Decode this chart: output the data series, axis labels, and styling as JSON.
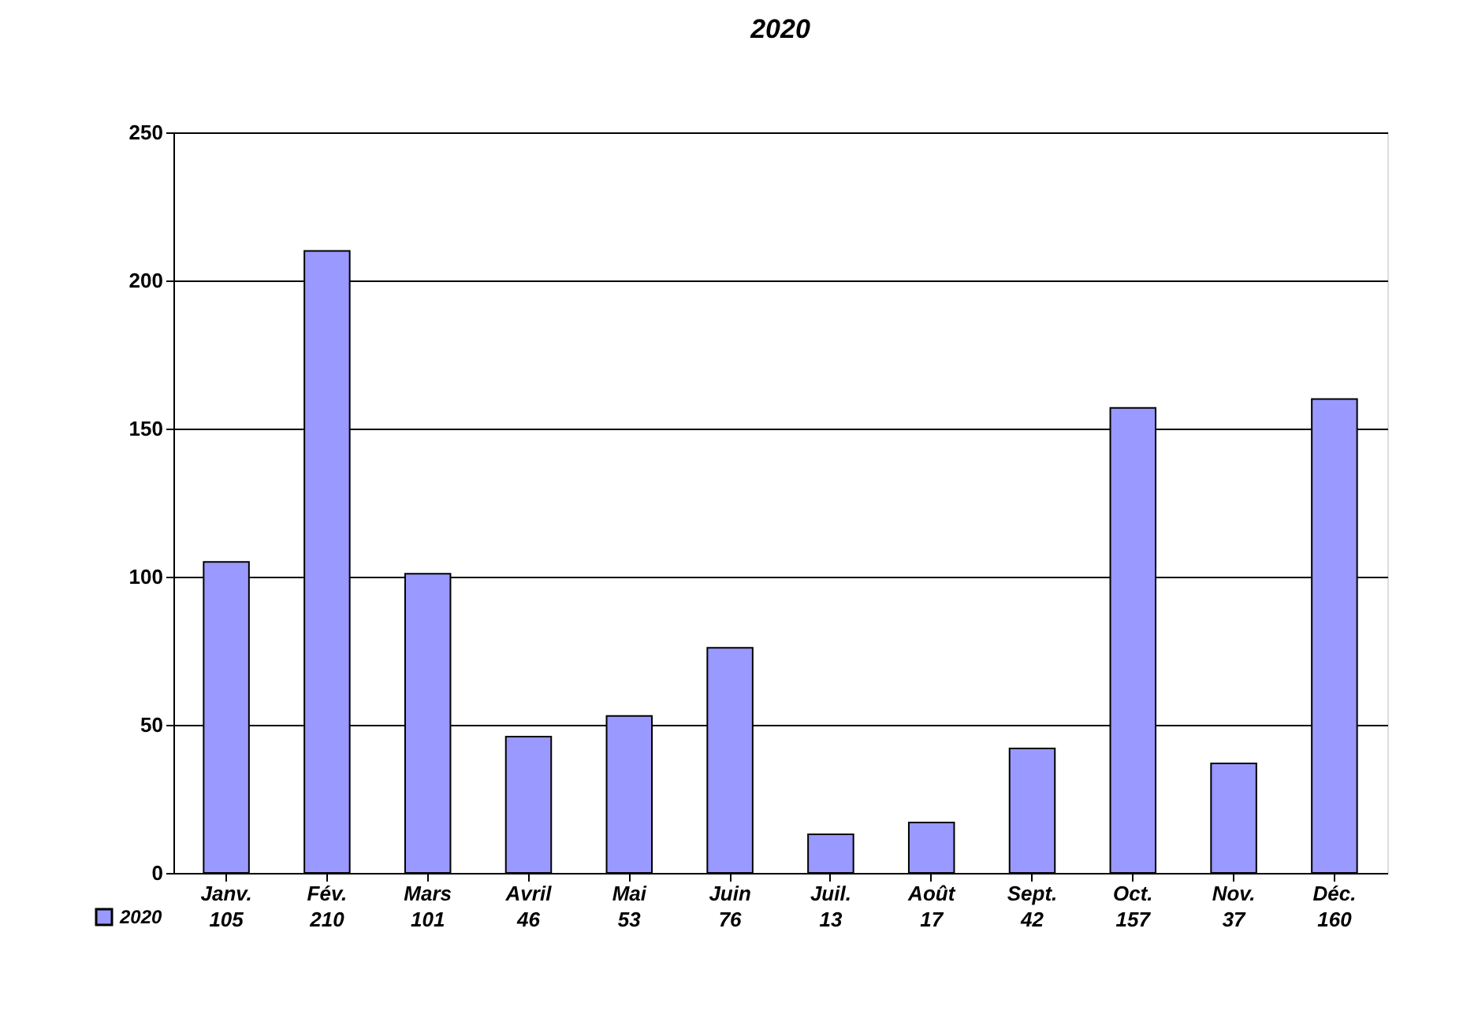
{
  "chart_data": {
    "type": "bar",
    "title": "2020",
    "categories": [
      "Janv.",
      "Fév.",
      "Mars",
      "Avril",
      "Mai",
      "Juin",
      "Juil.",
      "Août",
      "Sept.",
      "Oct.",
      "Nov.",
      "Déc."
    ],
    "series": [
      {
        "name": "2020",
        "color": "#9999ff",
        "values": [
          105,
          210,
          101,
          46,
          53,
          76,
          13,
          17,
          42,
          157,
          37,
          160
        ]
      }
    ],
    "ylim": [
      0,
      250
    ],
    "yticks": [
      0,
      50,
      100,
      150,
      200,
      250
    ],
    "grid": "y",
    "legend": "bottom left",
    "data_labels": true
  }
}
